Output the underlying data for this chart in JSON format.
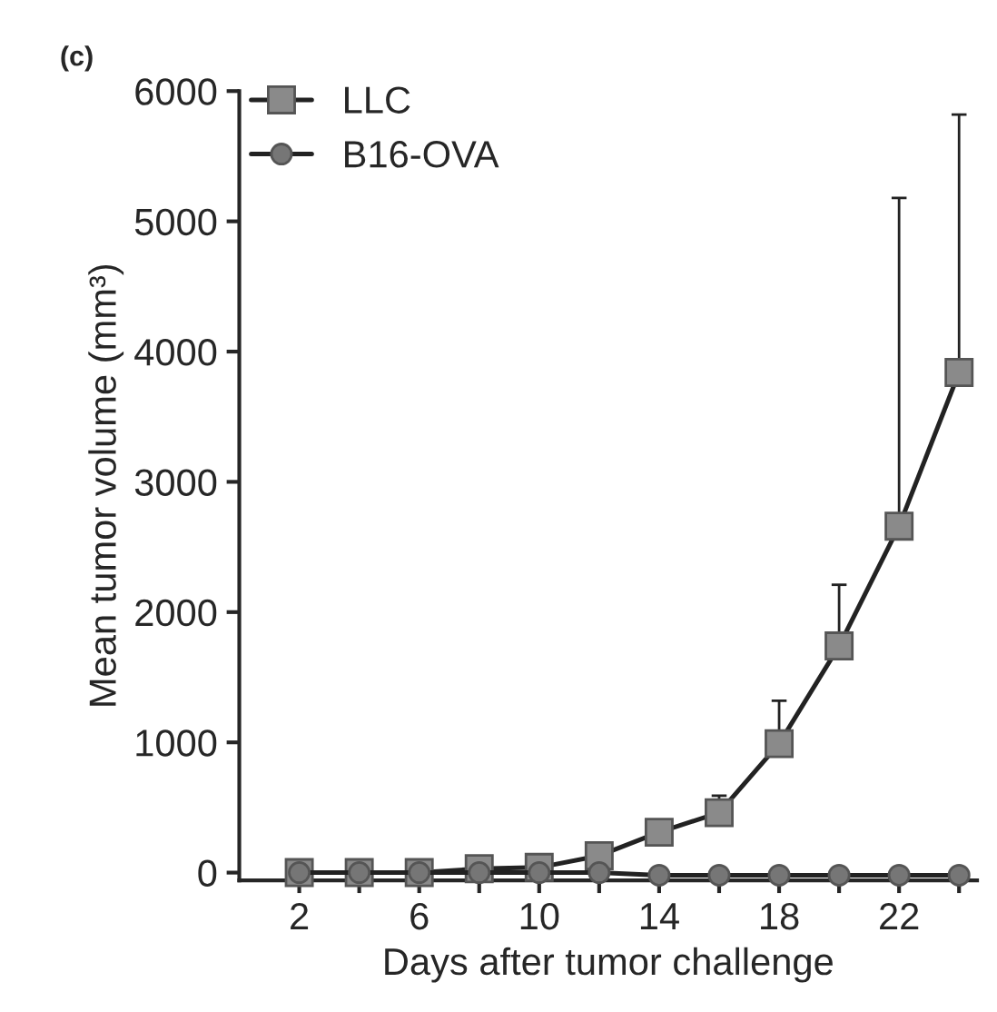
{
  "chart_data": {
    "type": "line",
    "title": "(c)",
    "xlabel": "Days after tumor challenge",
    "ylabel": "Mean tumor volume (mm³)",
    "x": [
      2,
      4,
      6,
      8,
      10,
      12,
      14,
      16,
      18,
      20,
      22,
      24
    ],
    "series": [
      {
        "name": "LLC",
        "color": "#8a8a8a",
        "marker": "square",
        "values": [
          0,
          0,
          0,
          30,
          40,
          130,
          310,
          460,
          990,
          1740,
          2660,
          3840
        ],
        "errors": [
          null,
          null,
          null,
          null,
          null,
          null,
          null,
          [
            460,
            590
          ],
          [
            990,
            1320
          ],
          [
            1740,
            2210
          ],
          [
            2660,
            5180
          ],
          [
            3840,
            5820
          ]
        ]
      },
      {
        "name": "B16-OVA",
        "color": "#767676",
        "marker": "circle",
        "values": [
          0,
          0,
          0,
          0,
          0,
          0,
          -20,
          -20,
          -20,
          -20,
          -20,
          -20
        ]
      }
    ],
    "xlim": [
      0,
      24.6
    ],
    "ylim": [
      -60,
      6000
    ],
    "xticks": [
      2,
      {
        "value": 4,
        "label": null
      },
      6,
      {
        "value": 8,
        "label": null
      },
      10,
      {
        "value": 12,
        "label": null
      },
      14,
      {
        "value": 16,
        "label": null
      },
      18,
      {
        "value": 20,
        "label": null
      },
      22,
      {
        "value": 24,
        "label": null
      }
    ],
    "yticks": [
      0,
      1000,
      2000,
      3000,
      4000,
      5000,
      6000
    ],
    "legend": "top left",
    "grid": false,
    "line_style": "solid"
  }
}
